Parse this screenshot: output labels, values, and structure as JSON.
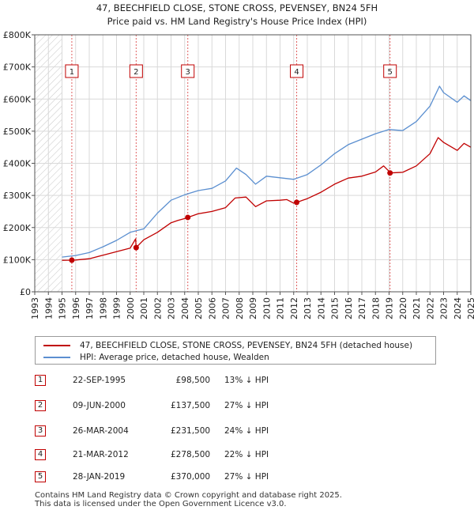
{
  "chart_data": {
    "type": "line",
    "title": "47, BEECHFIELD CLOSE, STONE CROSS, PEVENSEY, BN24 5FH",
    "subtitle": "Price paid vs. HM Land Registry's House Price Index (HPI)",
    "xlim": [
      1993,
      2025
    ],
    "ylim": [
      0,
      800000
    ],
    "x_ticks": [
      "1993",
      "1994",
      "1995",
      "1996",
      "1997",
      "1998",
      "1999",
      "2000",
      "2001",
      "2002",
      "2003",
      "2004",
      "2005",
      "2006",
      "2007",
      "2008",
      "2009",
      "2010",
      "2011",
      "2012",
      "2013",
      "2014",
      "2015",
      "2016",
      "2017",
      "2018",
      "2019",
      "2020",
      "2021",
      "2022",
      "2023",
      "2024",
      "2025"
    ],
    "y_ticks": [
      {
        "value": 0,
        "label": "£0"
      },
      {
        "value": 100000,
        "label": "£100K"
      },
      {
        "value": 200000,
        "label": "£200K"
      },
      {
        "value": 300000,
        "label": "£300K"
      },
      {
        "value": 400000,
        "label": "£400K"
      },
      {
        "value": 500000,
        "label": "£500K"
      },
      {
        "value": 600000,
        "label": "£600K"
      },
      {
        "value": 700000,
        "label": "£700K"
      },
      {
        "value": 800000,
        "label": "£800K"
      }
    ],
    "no_data_before": 1995.0,
    "series": [
      {
        "name": "47, BEECHFIELD CLOSE, STONE CROSS, PEVENSEY, BN24 5FH (detached house)",
        "color": "#c00000",
        "x": [
          1995.0,
          1995.72,
          1996.0,
          1997.0,
          1998.0,
          1999.0,
          2000.0,
          2000.4,
          2000.44,
          2001.0,
          2002.0,
          2003.0,
          2003.5,
          2004.0,
          2004.23,
          2005.0,
          2006.0,
          2007.0,
          2007.7,
          2008.5,
          2009.2,
          2010.0,
          2011.0,
          2011.5,
          2012.0,
          2012.22,
          2013.0,
          2014.0,
          2015.0,
          2016.0,
          2017.0,
          2018.0,
          2018.6,
          2019.0,
          2019.07,
          2020.0,
          2021.0,
          2022.0,
          2022.6,
          2023.0,
          2024.0,
          2024.5,
          2025.0
        ],
        "y": [
          98000,
          98500,
          99000,
          103000,
          114000,
          125000,
          136000,
          165000,
          137500,
          162000,
          185000,
          215000,
          222000,
          228000,
          231500,
          243000,
          250000,
          262000,
          292000,
          295000,
          265000,
          283000,
          285000,
          287000,
          276000,
          278500,
          290000,
          310000,
          335000,
          354000,
          360000,
          373000,
          392000,
          375000,
          370000,
          372000,
          392000,
          430000,
          480000,
          465000,
          440000,
          462000,
          450000
        ]
      },
      {
        "name": "HPI: Average price, detached house, Wealden",
        "color": "#5b8fd0",
        "x": [
          1995.0,
          1996.0,
          1997.0,
          1998.0,
          1999.0,
          2000.0,
          2001.0,
          2002.0,
          2003.0,
          2004.0,
          2005.0,
          2006.0,
          2007.0,
          2007.8,
          2008.5,
          2009.2,
          2010.0,
          2011.0,
          2012.0,
          2013.0,
          2014.0,
          2015.0,
          2016.0,
          2017.0,
          2018.0,
          2019.0,
          2020.0,
          2021.0,
          2022.0,
          2022.7,
          2023.0,
          2024.0,
          2024.5,
          2025.0
        ],
        "y": [
          108000,
          113000,
          122000,
          140000,
          160000,
          185000,
          196000,
          245000,
          285000,
          302000,
          315000,
          322000,
          345000,
          385000,
          365000,
          335000,
          360000,
          355000,
          350000,
          365000,
          395000,
          430000,
          458000,
          475000,
          492000,
          505000,
          502000,
          530000,
          578000,
          640000,
          620000,
          590000,
          610000,
          595000
        ]
      }
    ],
    "sales": [
      {
        "label": "1",
        "x": 1995.72,
        "y": 98500
      },
      {
        "label": "2",
        "x": 2000.44,
        "y": 137500
      },
      {
        "label": "3",
        "x": 2004.23,
        "y": 231500
      },
      {
        "label": "4",
        "x": 2012.22,
        "y": 278500
      },
      {
        "label": "5",
        "x": 2019.07,
        "y": 370000
      }
    ]
  },
  "legend": {
    "property_label": "47, BEECHFIELD CLOSE, STONE CROSS, PEVENSEY, BN24 5FH (detached house)",
    "hpi_label": "HPI: Average price, detached house, Wealden"
  },
  "sales_table": [
    {
      "num": "1",
      "date": "22-SEP-1995",
      "price": "£98,500",
      "hpi": "13% ↓ HPI"
    },
    {
      "num": "2",
      "date": "09-JUN-2000",
      "price": "£137,500",
      "hpi": "27% ↓ HPI"
    },
    {
      "num": "3",
      "date": "26-MAR-2004",
      "price": "£231,500",
      "hpi": "24% ↓ HPI"
    },
    {
      "num": "4",
      "date": "21-MAR-2012",
      "price": "£278,500",
      "hpi": "22% ↓ HPI"
    },
    {
      "num": "5",
      "date": "28-JAN-2019",
      "price": "£370,000",
      "hpi": "27% ↓ HPI"
    }
  ],
  "footer": {
    "line1": "Contains HM Land Registry data © Crown copyright and database right 2025.",
    "line2": "This data is licensed under the Open Government Licence v3.0."
  },
  "colors": {
    "property": "#c00000",
    "hpi": "#5b8fd0",
    "grid": "#d9d9d9",
    "hatch": "#c8c8c8"
  }
}
